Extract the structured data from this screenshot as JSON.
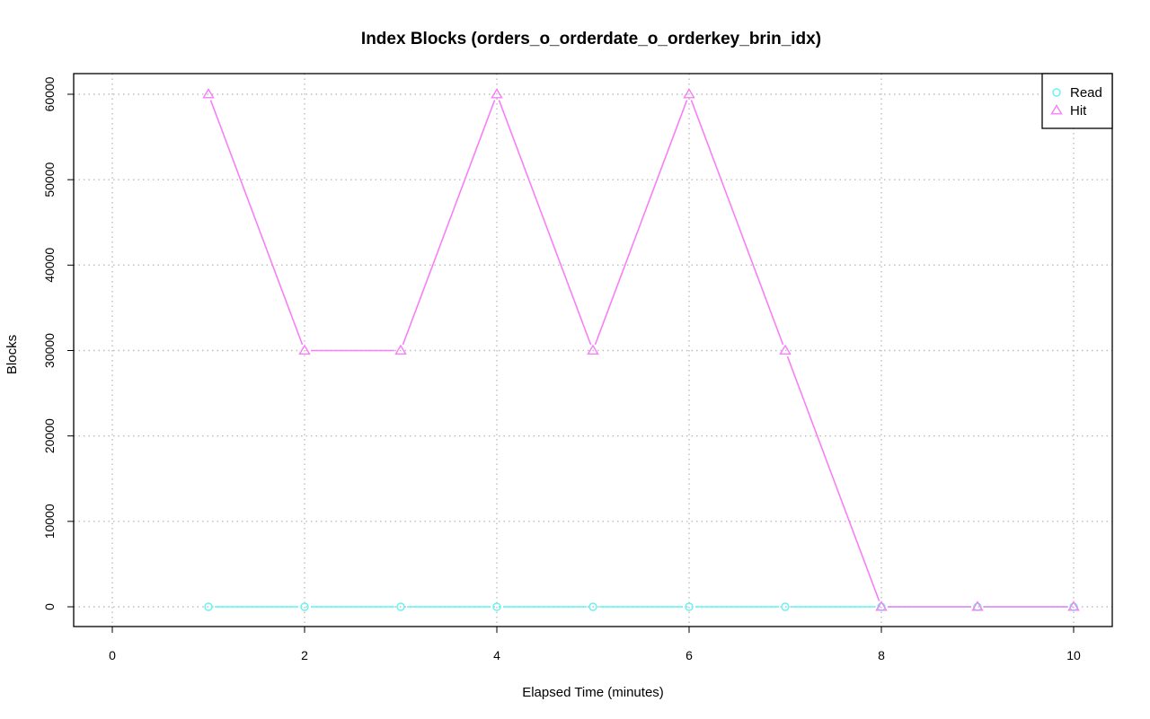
{
  "chart_data": {
    "type": "line",
    "title": "Index Blocks (orders_o_orderdate_o_orderkey_brin_idx)",
    "xlabel": "Elapsed Time (minutes)",
    "ylabel": "Blocks",
    "xlim": [
      0,
      10
    ],
    "ylim": [
      0,
      60000
    ],
    "x_ticks": [
      "0",
      "2",
      "4",
      "6",
      "8",
      "10"
    ],
    "y_ticks": [
      "0",
      "10000",
      "20000",
      "30000",
      "40000",
      "50000",
      "60000"
    ],
    "grid": true,
    "legend_position": "top-right",
    "x": [
      1,
      2,
      3,
      4,
      5,
      6,
      7,
      8,
      9,
      10
    ],
    "series": [
      {
        "name": "Read",
        "color": "#5ff5f5",
        "marker": "circle",
        "values": [
          0,
          0,
          0,
          0,
          0,
          0,
          0,
          0,
          0,
          0
        ]
      },
      {
        "name": "Hit",
        "color": "#f77ff7",
        "marker": "triangle",
        "values": [
          60000,
          30000,
          30000,
          60000,
          30000,
          60000,
          30000,
          0,
          0,
          0
        ]
      }
    ]
  }
}
